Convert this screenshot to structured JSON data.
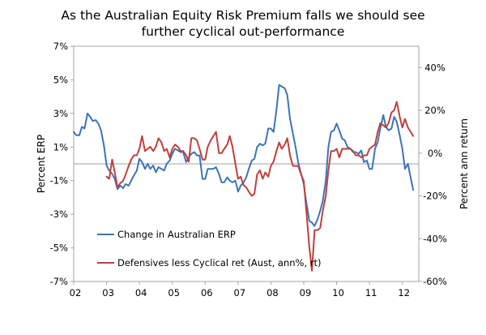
{
  "chart_data": {
    "type": "line",
    "title_line1": "As the Australian Equity Risk Premium falls we should see",
    "title_line2": "further cyclical out-performance",
    "ylabel_left": "Percent ERP",
    "ylabel_right": "Percent ann return",
    "ylim_left": [
      -7,
      7
    ],
    "ylim_right": [
      -60,
      50
    ],
    "y_ticks_left": [
      "7%",
      "5%",
      "3%",
      "1%",
      "-1%",
      "-3%",
      "-5%",
      "-7%"
    ],
    "y_ticks_right": [
      "40%",
      "20%",
      "0%",
      "-20%",
      "-40%",
      "-60%"
    ],
    "x_ticks": [
      "02",
      "03",
      "04",
      "05",
      "06",
      "07",
      "08",
      "09",
      "10",
      "11",
      "12"
    ],
    "xlim": [
      2002,
      2012.5
    ],
    "reference_line_left": 0,
    "legend_placement": "lower-left",
    "grid": false,
    "series": [
      {
        "name": "Change in Australian ERP",
        "axis": "left",
        "color": "#3B75B8",
        "points": [
          [
            2002.0,
            1.9
          ],
          [
            2002.08,
            1.7
          ],
          [
            2002.17,
            1.7
          ],
          [
            2002.25,
            2.2
          ],
          [
            2002.33,
            2.1
          ],
          [
            2002.42,
            3.0
          ],
          [
            2002.5,
            2.8
          ],
          [
            2002.58,
            2.55
          ],
          [
            2002.67,
            2.6
          ],
          [
            2002.75,
            2.4
          ],
          [
            2002.83,
            2.0
          ],
          [
            2002.92,
            1.1
          ],
          [
            2003.0,
            -0.1
          ],
          [
            2003.08,
            -0.4
          ],
          [
            2003.17,
            -0.6
          ],
          [
            2003.25,
            -0.9
          ],
          [
            2003.33,
            -1.5
          ],
          [
            2003.42,
            -1.3
          ],
          [
            2003.5,
            -1.45
          ],
          [
            2003.58,
            -1.2
          ],
          [
            2003.67,
            -1.3
          ],
          [
            2003.75,
            -1.0
          ],
          [
            2003.83,
            -0.7
          ],
          [
            2003.92,
            -0.4
          ],
          [
            2004.0,
            0.3
          ],
          [
            2004.08,
            0.1
          ],
          [
            2004.17,
            -0.3
          ],
          [
            2004.25,
            0.0
          ],
          [
            2004.33,
            -0.3
          ],
          [
            2004.42,
            -0.1
          ],
          [
            2004.5,
            -0.5
          ],
          [
            2004.58,
            -0.2
          ],
          [
            2004.67,
            -0.3
          ],
          [
            2004.75,
            -0.4
          ],
          [
            2004.83,
            0.0
          ],
          [
            2004.92,
            0.2
          ],
          [
            2005.0,
            0.6
          ],
          [
            2005.08,
            0.9
          ],
          [
            2005.17,
            0.8
          ],
          [
            2005.25,
            0.7
          ],
          [
            2005.33,
            0.7
          ],
          [
            2005.42,
            0.1
          ],
          [
            2005.5,
            0.4
          ],
          [
            2005.58,
            0.6
          ],
          [
            2005.67,
            0.7
          ],
          [
            2005.75,
            0.5
          ],
          [
            2005.83,
            0.5
          ],
          [
            2005.92,
            -0.9
          ],
          [
            2006.0,
            -0.9
          ],
          [
            2006.08,
            -0.3
          ],
          [
            2006.17,
            -0.3
          ],
          [
            2006.25,
            -0.3
          ],
          [
            2006.33,
            -0.2
          ],
          [
            2006.42,
            -0.6
          ],
          [
            2006.5,
            -1.1
          ],
          [
            2006.58,
            -1.1
          ],
          [
            2006.67,
            -0.8
          ],
          [
            2006.75,
            -1.0
          ],
          [
            2006.83,
            -1.1
          ],
          [
            2006.92,
            -1.0
          ],
          [
            2007.0,
            -1.65
          ],
          [
            2007.08,
            -1.3
          ],
          [
            2007.17,
            -1.1
          ],
          [
            2007.25,
            -0.8
          ],
          [
            2007.33,
            -0.3
          ],
          [
            2007.42,
            0.2
          ],
          [
            2007.5,
            0.3
          ],
          [
            2007.58,
            1.0
          ],
          [
            2007.67,
            1.2
          ],
          [
            2007.75,
            1.1
          ],
          [
            2007.83,
            1.2
          ],
          [
            2007.92,
            2.1
          ],
          [
            2008.0,
            2.1
          ],
          [
            2008.08,
            1.9
          ],
          [
            2008.17,
            3.2
          ],
          [
            2008.25,
            4.7
          ],
          [
            2008.33,
            4.6
          ],
          [
            2008.42,
            4.5
          ],
          [
            2008.5,
            4.1
          ],
          [
            2008.58,
            2.7
          ],
          [
            2008.67,
            1.8
          ],
          [
            2008.75,
            1.0
          ],
          [
            2008.83,
            0.1
          ],
          [
            2008.92,
            -0.6
          ],
          [
            2009.0,
            -1.2
          ],
          [
            2009.08,
            -2.3
          ],
          [
            2009.17,
            -3.4
          ],
          [
            2009.25,
            -3.5
          ],
          [
            2009.33,
            -3.7
          ],
          [
            2009.42,
            -3.3
          ],
          [
            2009.5,
            -2.8
          ],
          [
            2009.58,
            -2.2
          ],
          [
            2009.67,
            -1.0
          ],
          [
            2009.75,
            1.0
          ],
          [
            2009.83,
            1.9
          ],
          [
            2009.92,
            2.0
          ],
          [
            2010.0,
            2.4
          ],
          [
            2010.08,
            2.0
          ],
          [
            2010.17,
            1.5
          ],
          [
            2010.25,
            1.4
          ],
          [
            2010.33,
            1.0
          ],
          [
            2010.42,
            0.9
          ],
          [
            2010.5,
            0.7
          ],
          [
            2010.58,
            0.7
          ],
          [
            2010.67,
            0.6
          ],
          [
            2010.75,
            0.8
          ],
          [
            2010.83,
            0.1
          ],
          [
            2010.92,
            0.2
          ],
          [
            2011.0,
            -0.3
          ],
          [
            2011.08,
            -0.3
          ],
          [
            2011.17,
            0.9
          ],
          [
            2011.25,
            1.3
          ],
          [
            2011.33,
            2.1
          ],
          [
            2011.42,
            2.9
          ],
          [
            2011.5,
            2.2
          ],
          [
            2011.58,
            2.0
          ],
          [
            2011.67,
            2.1
          ],
          [
            2011.75,
            2.8
          ],
          [
            2011.83,
            2.5
          ],
          [
            2011.92,
            1.7
          ],
          [
            2012.0,
            0.9
          ],
          [
            2012.08,
            -0.3
          ],
          [
            2012.17,
            0.0
          ],
          [
            2012.25,
            -0.8
          ],
          [
            2012.33,
            -1.55
          ]
        ]
      },
      {
        "name": "Defensives less Cyclical ret (Aust, ann%, rt)",
        "axis": "right",
        "color": "#C0403C",
        "points": [
          [
            2003.0,
            -11
          ],
          [
            2003.08,
            -12
          ],
          [
            2003.17,
            -3
          ],
          [
            2003.25,
            -9
          ],
          [
            2003.33,
            -16
          ],
          [
            2003.42,
            -14
          ],
          [
            2003.5,
            -13
          ],
          [
            2003.58,
            -10
          ],
          [
            2003.67,
            -6
          ],
          [
            2003.75,
            -3
          ],
          [
            2003.83,
            -1
          ],
          [
            2003.92,
            -1
          ],
          [
            2004.0,
            2
          ],
          [
            2004.08,
            8
          ],
          [
            2004.17,
            1
          ],
          [
            2004.25,
            2
          ],
          [
            2004.33,
            3
          ],
          [
            2004.42,
            1
          ],
          [
            2004.5,
            3
          ],
          [
            2004.58,
            7
          ],
          [
            2004.67,
            5
          ],
          [
            2004.75,
            1
          ],
          [
            2004.83,
            2
          ],
          [
            2004.92,
            -2
          ],
          [
            2005.0,
            2
          ],
          [
            2005.08,
            4
          ],
          [
            2005.17,
            3
          ],
          [
            2005.25,
            1
          ],
          [
            2005.33,
            1
          ],
          [
            2005.42,
            -1
          ],
          [
            2005.5,
            -4
          ],
          [
            2005.58,
            7
          ],
          [
            2005.67,
            7
          ],
          [
            2005.75,
            6
          ],
          [
            2005.83,
            2
          ],
          [
            2005.92,
            -3
          ],
          [
            2006.0,
            -3
          ],
          [
            2006.08,
            3
          ],
          [
            2006.17,
            6
          ],
          [
            2006.25,
            8
          ],
          [
            2006.33,
            10
          ],
          [
            2006.42,
            0
          ],
          [
            2006.5,
            0
          ],
          [
            2006.58,
            2
          ],
          [
            2006.67,
            4
          ],
          [
            2006.75,
            8
          ],
          [
            2006.83,
            3
          ],
          [
            2006.92,
            -5
          ],
          [
            2007.0,
            -12
          ],
          [
            2007.08,
            -11
          ],
          [
            2007.17,
            -15
          ],
          [
            2007.25,
            -16
          ],
          [
            2007.33,
            -18
          ],
          [
            2007.42,
            -20
          ],
          [
            2007.5,
            -19
          ],
          [
            2007.58,
            -10
          ],
          [
            2007.67,
            -8
          ],
          [
            2007.75,
            -12
          ],
          [
            2007.83,
            -9
          ],
          [
            2007.92,
            -11
          ],
          [
            2008.0,
            -6
          ],
          [
            2008.08,
            -4
          ],
          [
            2008.17,
            1
          ],
          [
            2008.25,
            5
          ],
          [
            2008.33,
            2
          ],
          [
            2008.42,
            4
          ],
          [
            2008.5,
            7
          ],
          [
            2008.58,
            -1
          ],
          [
            2008.67,
            -6
          ],
          [
            2008.75,
            -6
          ],
          [
            2008.83,
            -6
          ],
          [
            2008.92,
            -10
          ],
          [
            2009.0,
            -13
          ],
          [
            2009.08,
            -27
          ],
          [
            2009.17,
            -44
          ],
          [
            2009.25,
            -55
          ],
          [
            2009.33,
            -36
          ],
          [
            2009.42,
            -36
          ],
          [
            2009.5,
            -35
          ],
          [
            2009.58,
            -27
          ],
          [
            2009.67,
            -20
          ],
          [
            2009.75,
            -8
          ],
          [
            2009.83,
            1
          ],
          [
            2009.92,
            1
          ],
          [
            2010.0,
            2
          ],
          [
            2010.08,
            -2
          ],
          [
            2010.17,
            2
          ],
          [
            2010.25,
            2
          ],
          [
            2010.33,
            2
          ],
          [
            2010.42,
            2
          ],
          [
            2010.5,
            1
          ],
          [
            2010.58,
            -1
          ],
          [
            2010.67,
            -1
          ],
          [
            2010.75,
            -2
          ],
          [
            2010.83,
            -1
          ],
          [
            2010.92,
            -1
          ],
          [
            2011.0,
            2
          ],
          [
            2011.08,
            3
          ],
          [
            2011.17,
            4
          ],
          [
            2011.25,
            10
          ],
          [
            2011.33,
            14
          ],
          [
            2011.42,
            13
          ],
          [
            2011.5,
            12
          ],
          [
            2011.58,
            14
          ],
          [
            2011.67,
            19
          ],
          [
            2011.75,
            20
          ],
          [
            2011.83,
            24
          ],
          [
            2011.92,
            17
          ],
          [
            2012.0,
            12
          ],
          [
            2012.08,
            16
          ],
          [
            2012.17,
            12
          ],
          [
            2012.25,
            10
          ],
          [
            2012.33,
            8
          ]
        ]
      }
    ]
  }
}
